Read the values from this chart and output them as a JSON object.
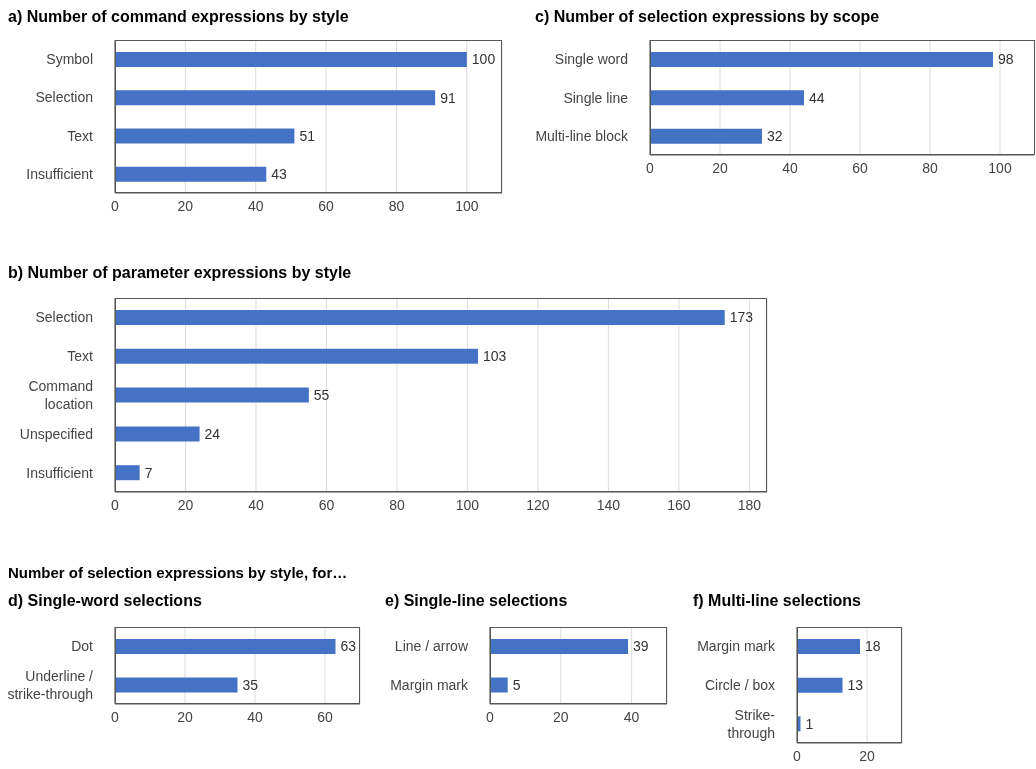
{
  "chart_data": [
    {
      "type": "bar",
      "orientation": "horizontal",
      "title": "a) Number of command expressions by style",
      "categories": [
        "Symbol",
        "Selection",
        "Text",
        "Insufficient"
      ],
      "values": [
        100,
        91,
        51,
        43
      ],
      "color": "#4472c4",
      "xlim": [
        0,
        110
      ],
      "xticks": [
        0,
        20,
        40,
        60,
        80,
        100
      ],
      "grid": "x",
      "data_labels": true
    },
    {
      "type": "bar",
      "orientation": "horizontal",
      "title": "c) Number of selection expressions by scope",
      "categories": [
        "Single word",
        "Single line",
        "Multi-line block"
      ],
      "values": [
        98,
        44,
        32
      ],
      "color": "#4472c4",
      "xlim": [
        0,
        110
      ],
      "xticks": [
        0,
        20,
        40,
        60,
        80,
        100
      ],
      "grid": "x",
      "data_labels": true
    },
    {
      "type": "bar",
      "orientation": "horizontal",
      "title": "b) Number of parameter expressions by style",
      "categories": [
        "Selection",
        "Text",
        "Command location",
        "Unspecified",
        "Insufficient"
      ],
      "values": [
        173,
        103,
        55,
        24,
        7
      ],
      "color": "#4472c4",
      "xlim": [
        0,
        185
      ],
      "xticks": [
        0,
        20,
        40,
        60,
        80,
        100,
        120,
        140,
        160,
        180
      ],
      "grid": "x",
      "data_labels": true
    },
    {
      "type": "bar",
      "orientation": "horizontal",
      "annotations": [
        "Number of selection expressions by style, for…"
      ],
      "title": "d) Single-word selections",
      "categories": [
        "Dot",
        "Underline / strike-through"
      ],
      "values": [
        63,
        35
      ],
      "color": "#4472c4",
      "xlim": [
        0,
        70
      ],
      "xticks": [
        0,
        20,
        40,
        60
      ],
      "grid": "x",
      "data_labels": true
    },
    {
      "type": "bar",
      "orientation": "horizontal",
      "title": "e) Single-line selections",
      "categories": [
        "Line / arrow",
        "Margin mark"
      ],
      "values": [
        39,
        5
      ],
      "color": "#4472c4",
      "xlim": [
        0,
        50
      ],
      "xticks": [
        0,
        20,
        40
      ],
      "grid": "x",
      "data_labels": true
    },
    {
      "type": "bar",
      "orientation": "horizontal",
      "title": "f) Multi-line selections",
      "categories": [
        "Margin mark",
        "Circle / box",
        "Strike-through"
      ],
      "values": [
        18,
        13,
        1
      ],
      "color": "#4472c4",
      "xlim": [
        0,
        30
      ],
      "xticks": [
        0,
        20
      ],
      "grid": "x",
      "data_labels": true
    }
  ]
}
